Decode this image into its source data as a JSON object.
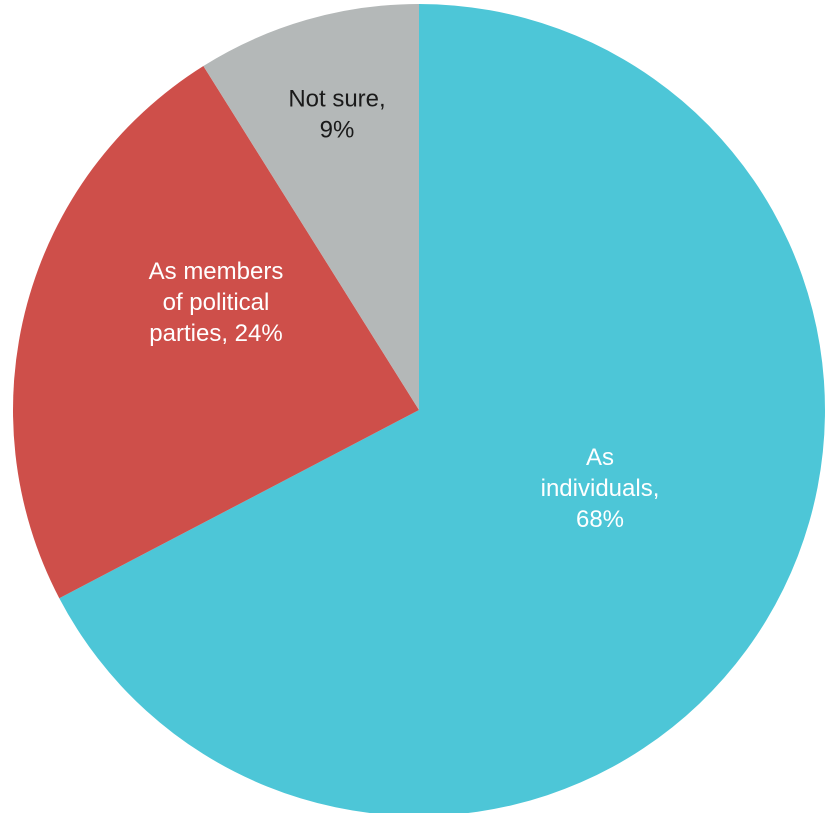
{
  "chart_data": {
    "type": "pie",
    "title": "",
    "slices": [
      {
        "key": "individuals",
        "lines": [
          "As",
          "individuals,",
          "68%"
        ],
        "value": 68,
        "color": "#4DC6D7",
        "label_color": "#ffffff"
      },
      {
        "key": "parties",
        "lines": [
          "As members",
          "of political",
          "parties, 24%"
        ],
        "value": 24,
        "color": "#CE4F4A",
        "label_color": "#ffffff"
      },
      {
        "key": "not-sure",
        "lines": [
          "Not sure,",
          "9%"
        ],
        "value": 9,
        "color": "#B4B8B8",
        "label_color": "#1a1a1a"
      }
    ],
    "start": "12 o'clock",
    "direction": "clockwise",
    "legend": "none",
    "labels": "inside slices"
  }
}
